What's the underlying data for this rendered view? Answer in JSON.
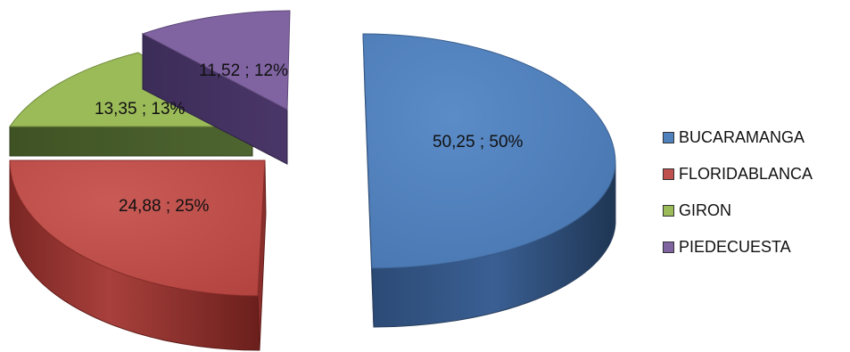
{
  "chart_data": {
    "type": "pie",
    "style": "3d-exploded",
    "slices": [
      {
        "name": "BUCARAMANGA",
        "value": 50.25,
        "percent": 50,
        "label": "50,25 ; 50%",
        "color": "#4F81BD"
      },
      {
        "name": "FLORIDABLANCA",
        "value": 24.88,
        "percent": 25,
        "label": "24,88 ; 25%",
        "color": "#C0504D"
      },
      {
        "name": "GIRON",
        "value": 13.35,
        "percent": 13,
        "label": "13,35 ; 13%",
        "color": "#9BBB59"
      },
      {
        "name": "PIEDECUESTA",
        "value": 11.52,
        "percent": 12,
        "label": "11,52 ; 12%",
        "color": "#8064A2"
      }
    ],
    "legend": {
      "position": "right",
      "items": [
        "BUCARAMANGA",
        "FLORIDABLANCA",
        "GIRON",
        "PIEDECUESTA"
      ]
    }
  }
}
